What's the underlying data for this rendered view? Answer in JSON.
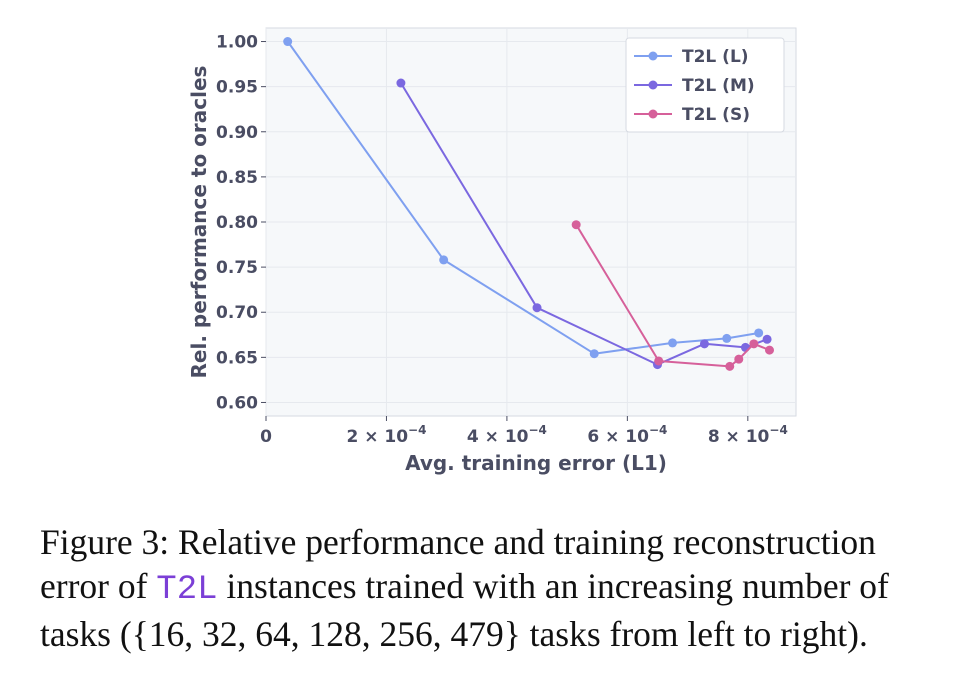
{
  "chart_data": {
    "type": "line",
    "title": "",
    "xlabel": "Avg. training error (L1)",
    "ylabel": "Rel. performance to oracles",
    "xlim": [
      0,
      0.00088
    ],
    "ylim": [
      0.585,
      1.015
    ],
    "x_ticks": [
      {
        "value": 0,
        "label": "0",
        "sup": ""
      },
      {
        "value": 0.0002,
        "label": "2 × 10",
        "sup": "−4"
      },
      {
        "value": 0.0004,
        "label": "4 × 10",
        "sup": "−4"
      },
      {
        "value": 0.0006,
        "label": "6 × 10",
        "sup": "−4"
      },
      {
        "value": 0.0008,
        "label": "8 × 10",
        "sup": "−4"
      }
    ],
    "y_ticks": [
      {
        "value": 0.6,
        "label": "0.60"
      },
      {
        "value": 0.65,
        "label": "0.65"
      },
      {
        "value": 0.7,
        "label": "0.70"
      },
      {
        "value": 0.75,
        "label": "0.75"
      },
      {
        "value": 0.8,
        "label": "0.80"
      },
      {
        "value": 0.85,
        "label": "0.85"
      },
      {
        "value": 0.9,
        "label": "0.90"
      },
      {
        "value": 0.95,
        "label": "0.95"
      },
      {
        "value": 1.0,
        "label": "1.00"
      }
    ],
    "grid": true,
    "legend_position": "top-right",
    "series": [
      {
        "name": "T2L (L)",
        "color": "#7fa0f0",
        "x": [
          3.6e-05,
          0.000295,
          0.000545,
          0.000675,
          0.000765,
          0.000818
        ],
        "y": [
          1.0,
          0.758,
          0.654,
          0.666,
          0.671,
          0.677
        ]
      },
      {
        "name": "T2L (M)",
        "color": "#7b68e0",
        "x": [
          0.000224,
          0.00045,
          0.00065,
          0.000728,
          0.000796,
          0.000832
        ],
        "y": [
          0.954,
          0.705,
          0.642,
          0.665,
          0.661,
          0.67
        ]
      },
      {
        "name": "T2L (S)",
        "color": "#d6609a",
        "x": [
          0.000515,
          0.000652,
          0.00077,
          0.000785,
          0.00081,
          0.000836
        ],
        "y": [
          0.797,
          0.646,
          0.64,
          0.648,
          0.665,
          0.658
        ]
      }
    ]
  },
  "caption": {
    "prefix": "Figure 3: Relative performance and training reconstruction error of ",
    "code": "T2L",
    "suffix": " instances trained with an increasing number of tasks ({16, 32, 64, 128, 256, 479} tasks from left to right)."
  }
}
